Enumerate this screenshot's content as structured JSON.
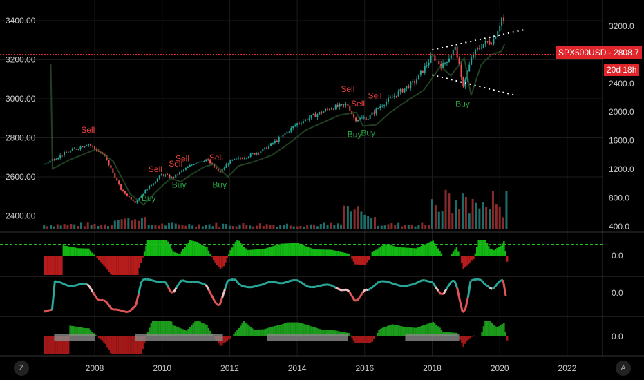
{
  "chart_data": {
    "type": "line",
    "symbol": "SPX500USD",
    "last_price": "2808.7",
    "countdown": "20d 18h",
    "left_axis": {
      "ticks": [
        "3400.00",
        "3200.00",
        "3000.00",
        "2800.00",
        "2600.00",
        "2400.00"
      ],
      "values": [
        3400,
        3200,
        3000,
        2800,
        2600,
        2400
      ]
    },
    "right_axis": {
      "ticks": [
        "3200.0",
        "2800.0",
        "2400.0",
        "2000.0",
        "1600.0",
        "1200.0",
        "800.0",
        "400.0"
      ],
      "values": [
        3200,
        2800,
        2400,
        2000,
        1600,
        1200,
        800,
        400
      ]
    },
    "x_axis": {
      "ticks": [
        "2008",
        "2010",
        "2012",
        "2014",
        "2016",
        "2018",
        "2020",
        "2022"
      ],
      "values": [
        2008,
        2010,
        2012,
        2014,
        2016,
        2018,
        2020,
        2022
      ]
    },
    "series": [
      {
        "x": [
          2006.5,
          2007.0,
          2007.5,
          2007.8,
          2008.3,
          2008.8,
          2009.2,
          2009.6,
          2010.0,
          2010.3,
          2010.6,
          2011.0,
          2011.3,
          2011.7,
          2012.0,
          2012.5,
          2013.0,
          2013.5,
          2014.0,
          2014.5,
          2015.0,
          2015.5,
          2015.7,
          2016.1,
          2016.5,
          2017.0,
          2017.5,
          2018.0,
          2018.3,
          2018.7,
          2018.9,
          2019.2,
          2019.5,
          2019.8,
          2020.0,
          2020.1,
          2020.2
        ],
        "values": [
          1270,
          1400,
          1500,
          1560,
          1380,
          900,
          740,
          950,
          1130,
          1080,
          1180,
          1300,
          1340,
          1150,
          1310,
          1380,
          1470,
          1640,
          1840,
          1950,
          2060,
          2100,
          1900,
          1920,
          2100,
          2270,
          2430,
          2780,
          2640,
          2900,
          2350,
          2800,
          2950,
          3000,
          3230,
          3380,
          2808.7
        ]
      }
    ],
    "signals": [
      {
        "label": "Sell",
        "x": 2007.8
      },
      {
        "label": "Sell",
        "x": 2009.8
      },
      {
        "label": "Sell",
        "x": 2010.4
      },
      {
        "label": "Sell",
        "x": 2010.6
      },
      {
        "label": "Sell",
        "x": 2011.6
      },
      {
        "label": "Sell",
        "x": 2015.5
      },
      {
        "label": "Sell",
        "x": 2015.8
      },
      {
        "label": "Sell",
        "x": 2016.3
      },
      {
        "label": "Sell",
        "x": 2020.1
      },
      {
        "label": "Buy",
        "x": 2009.6
      },
      {
        "label": "Buy",
        "x": 2010.5
      },
      {
        "label": "Buy",
        "x": 2011.7
      },
      {
        "label": "Buy",
        "x": 2015.7
      },
      {
        "label": "Buy",
        "x": 2016.1
      },
      {
        "label": "Buy",
        "x": 2018.9
      }
    ],
    "indicator_ticks": [
      "0.0",
      "0.0",
      "0.0"
    ],
    "grid": true
  },
  "ui": {
    "z_button": "Z",
    "a_button": "A"
  },
  "colors": {
    "up": "#26a69a",
    "down": "#ef5350",
    "green": "#16c60c",
    "red": "#c91d1d",
    "price_line": "#e0262b"
  }
}
